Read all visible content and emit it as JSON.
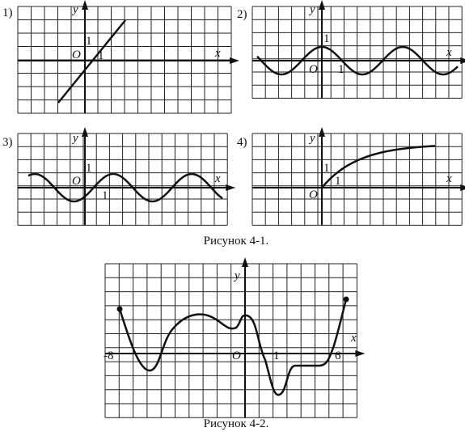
{
  "panels": [
    {
      "label": "1)",
      "y": "y",
      "x": "x",
      "origin": "O",
      "unit_y": "1",
      "unit_x": "1"
    },
    {
      "label": "2)",
      "y": "y",
      "x": "x",
      "origin": "O",
      "unit_y": "1",
      "unit_x": "1"
    },
    {
      "label": "3)",
      "y": "y",
      "x": "x",
      "origin": "O",
      "unit_y": "1",
      "unit_x": "1"
    },
    {
      "label": "4)",
      "y": "y",
      "x": "x",
      "origin": "O",
      "unit_y": "1",
      "unit_x": "1"
    }
  ],
  "caption1": "Рисунок 4-1.",
  "figure2": {
    "y": "y",
    "x": "x",
    "origin": "O",
    "unit_x": "1",
    "left": "-8",
    "right": "6"
  },
  "caption2": "Рисунок 4-2."
}
